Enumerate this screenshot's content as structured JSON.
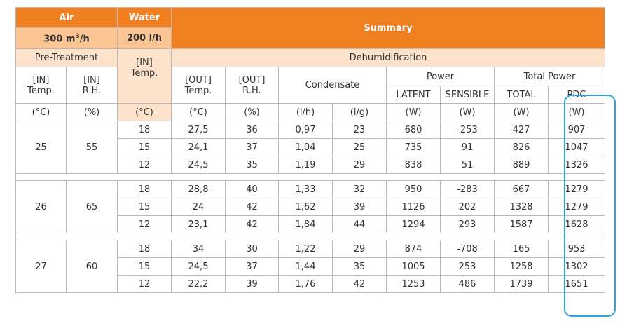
{
  "header": {
    "air_label": "Air",
    "water_label": "Water",
    "summary_label": "Summary",
    "air_flow": "300 m",
    "air_flow_unit_sup": "3",
    "air_flow_suffix": "/h",
    "water_flow": "200 l/h",
    "pre_treatment": "Pre-Treatment",
    "dehumidification": "Dehumidification",
    "power": "Power",
    "total_power": "Total Power",
    "col_in_temp_1": "[IN]",
    "col_in_temp_2": "Temp.",
    "col_in_rh_1": "[IN]",
    "col_in_rh_2": "R.H.",
    "col_water_in_1": "[IN]",
    "col_water_in_2": "Temp.",
    "col_out_temp_1": "[OUT]",
    "col_out_temp_2": "Temp.",
    "col_out_rh_1": "[OUT]",
    "col_out_rh_2": "R.H.",
    "condensate": "Condensate",
    "latent": "LATENT",
    "sensible": "SENSIBLE",
    "total": "TOTAL",
    "pdc": "PDC"
  },
  "units": [
    "(°C)",
    "(%)",
    "(°C)",
    "(°C)",
    "(%)",
    "(l/h)",
    "(l/g)",
    "(W)",
    "(W)",
    "(W)",
    "(W)"
  ],
  "groups": [
    {
      "in_temp": "25",
      "in_rh": "55",
      "rows": [
        [
          "18",
          "27,5",
          "36",
          "0,97",
          "23",
          "680",
          "-253",
          "427",
          "907"
        ],
        [
          "15",
          "24,1",
          "37",
          "1,04",
          "25",
          "735",
          "91",
          "826",
          "1047"
        ],
        [
          "12",
          "24,5",
          "35",
          "1,19",
          "29",
          "838",
          "51",
          "889",
          "1326"
        ]
      ]
    },
    {
      "in_temp": "26",
      "in_rh": "65",
      "rows": [
        [
          "18",
          "28,8",
          "40",
          "1,33",
          "32",
          "950",
          "-283",
          "667",
          "1279"
        ],
        [
          "15",
          "24",
          "42",
          "1,62",
          "39",
          "1126",
          "202",
          "1328",
          "1279"
        ],
        [
          "12",
          "23,1",
          "42",
          "1,84",
          "44",
          "1294",
          "293",
          "1587",
          "1628"
        ]
      ]
    },
    {
      "in_temp": "27",
      "in_rh": "60",
      "rows": [
        [
          "18",
          "34",
          "30",
          "1,22",
          "29",
          "874",
          "-708",
          "165",
          "953"
        ],
        [
          "15",
          "24,5",
          "37",
          "1,44",
          "35",
          "1005",
          "253",
          "1258",
          "1302"
        ],
        [
          "12",
          "22,2",
          "39",
          "1,76",
          "42",
          "1253",
          "486",
          "1739",
          "1651"
        ]
      ]
    }
  ],
  "colors": {
    "orange": "#f07f22",
    "peach": "#fbc593",
    "light": "#fde3cc",
    "highlight": "#2aa4dd"
  }
}
